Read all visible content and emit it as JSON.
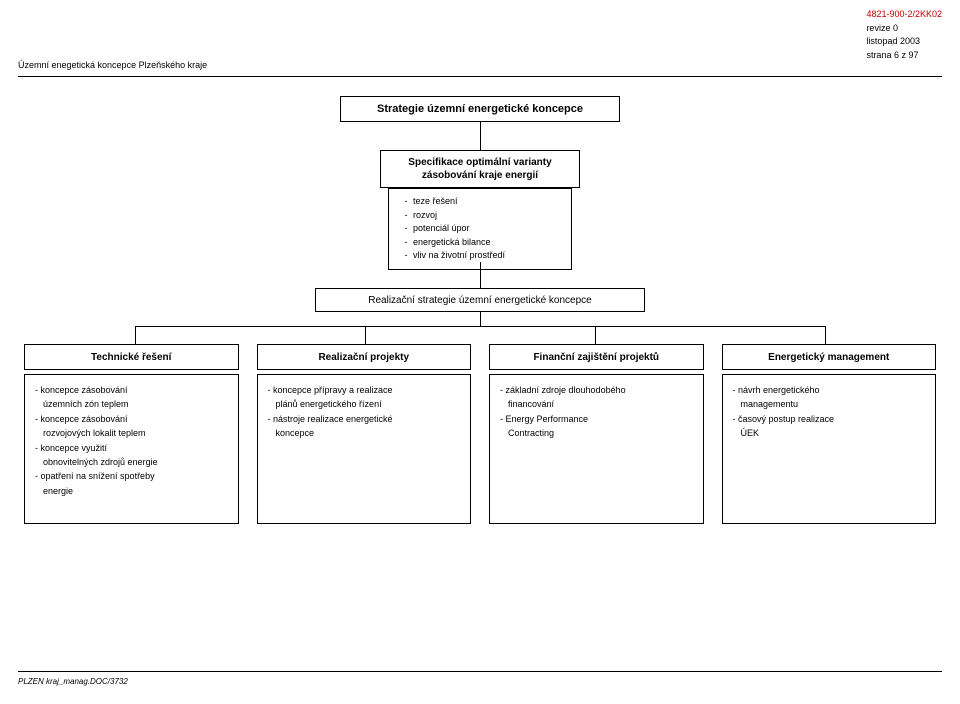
{
  "header": {
    "code": "4821-900-2/2KK02",
    "rev": "revize 0",
    "date": "listopad 2003",
    "page": "strana 6 z 97",
    "doc_title": "Územní enegetická koncepce Plzeňského kraje"
  },
  "root": {
    "title": "Strategie územní energetické koncepce"
  },
  "spec": {
    "title": "Specifikace optimální varianty zásobování kraje energií",
    "items": [
      "teze řešení",
      "rozvoj",
      "potenciál úpor",
      "energetická bilance",
      "vliv na životní prostředí"
    ]
  },
  "realization": {
    "title": "Realizační strategie územní energetické koncepce"
  },
  "columns": [
    {
      "head": "Technické řešení",
      "body": [
        "- koncepce zásobování",
        "  územních zón teplem",
        "- koncepce zásobování",
        "  rozvojových lokalit teplem",
        "- koncepce využití",
        "  obnovitelných zdrojů energie",
        "- opatření na snížení spotřeby",
        "  energie"
      ]
    },
    {
      "head": "Realizační projekty",
      "body": [
        "- koncepce přípravy a realizace",
        "  plánů energetického řízení",
        "- nástroje realizace energetické",
        "  koncepce"
      ]
    },
    {
      "head": "Finanční zajištění projektů",
      "body": [
        "- základní zdroje dlouhodobého",
        "  financování",
        "- Energy Performance",
        "  Contracting"
      ]
    },
    {
      "head": "Energetický management",
      "body": [
        "- návrh energetického",
        "  managementu",
        "- časový postup realizace",
        "  ÚEK"
      ]
    }
  ],
  "footer": {
    "text": "PLZEN kraj_manag.DOC/3732"
  },
  "style": {
    "page_bg": "#ffffff",
    "border_color": "#000000",
    "code_color": "#c00000",
    "font_family": "Arial",
    "title_fontsize": 11,
    "head_fontsize": 10,
    "body_fontsize": 9,
    "small_fontsize": 8
  }
}
